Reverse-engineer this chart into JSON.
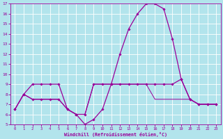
{
  "xlabel": "Windchill (Refroidissement éolien,°C)",
  "xlim": [
    -0.5,
    23.5
  ],
  "ylim": [
    5,
    17
  ],
  "yticks": [
    5,
    6,
    7,
    8,
    9,
    10,
    11,
    12,
    13,
    14,
    15,
    16,
    17
  ],
  "xticks": [
    0,
    1,
    2,
    3,
    4,
    5,
    6,
    7,
    8,
    9,
    10,
    11,
    12,
    13,
    14,
    15,
    16,
    17,
    18,
    19,
    20,
    21,
    22,
    23
  ],
  "background_color": "#b2e4ec",
  "grid_color": "#ffffff",
  "line_color": "#990099",
  "series": [
    {
      "x": [
        0,
        1,
        2,
        3,
        4,
        5,
        6,
        7,
        8,
        9,
        10,
        11,
        12,
        13,
        14,
        15,
        16,
        17,
        18,
        19,
        20,
        21,
        22,
        23
      ],
      "y": [
        6.5,
        8,
        9,
        9,
        9,
        9,
        6.5,
        6,
        5,
        5.5,
        6.5,
        9,
        12,
        14.5,
        16,
        17,
        17,
        16.5,
        13.5,
        9.5,
        7.5,
        7,
        7,
        7
      ],
      "marker": "D",
      "markersize": 1.8,
      "linewidth": 0.9
    },
    {
      "x": [
        0,
        1,
        2,
        3,
        4,
        5,
        6,
        7,
        8,
        9,
        10,
        11,
        12,
        13,
        14,
        15,
        16,
        17,
        18,
        19,
        20,
        21,
        22,
        23
      ],
      "y": [
        6.5,
        8,
        7.5,
        7.5,
        7.5,
        7.5,
        6.5,
        6,
        6,
        9,
        9,
        9,
        9,
        9,
        9,
        9,
        9,
        9,
        9,
        9.5,
        7.5,
        7,
        7,
        7
      ],
      "marker": "D",
      "markersize": 1.8,
      "linewidth": 0.9
    },
    {
      "x": [
        0,
        1,
        2,
        3,
        4,
        5,
        6,
        7,
        8,
        9,
        10,
        11,
        12,
        13,
        14,
        15,
        16,
        17,
        18,
        19,
        20,
        21,
        22,
        23
      ],
      "y": [
        6.5,
        8,
        7.5,
        7.5,
        7.5,
        7.5,
        6.5,
        6,
        6,
        9,
        9,
        9,
        9,
        9,
        9,
        9,
        7.5,
        7.5,
        7.5,
        7.5,
        7.5,
        7,
        7,
        7
      ],
      "marker": null,
      "markersize": 0,
      "linewidth": 0.7
    }
  ]
}
